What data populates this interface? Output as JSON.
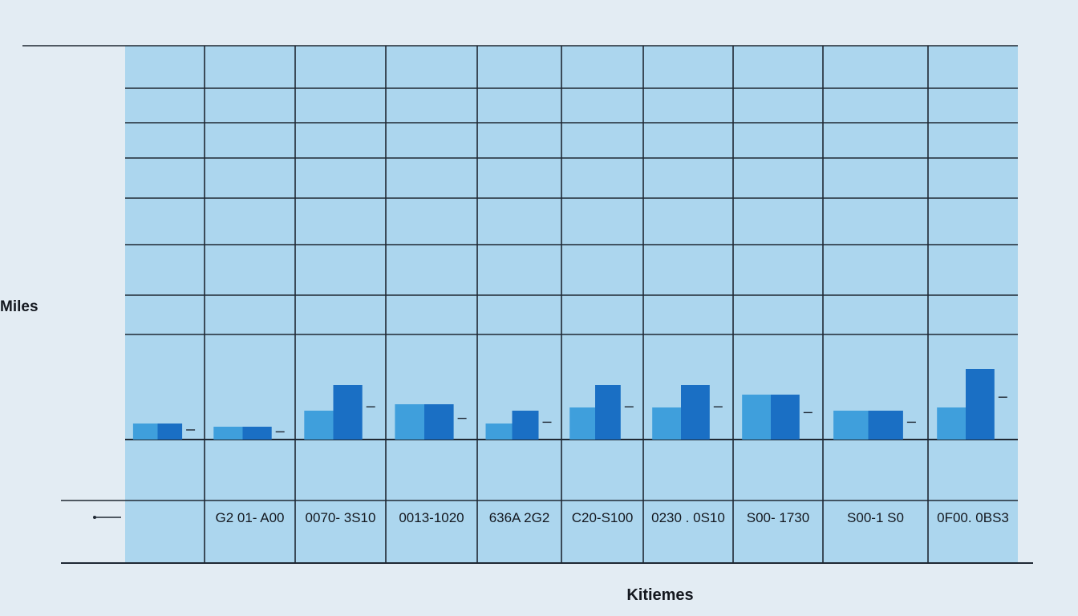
{
  "chart_data": {
    "type": "bar",
    "xlabel": "Kitiemes",
    "ylabel": "Miles",
    "categories": [
      "",
      "G2 01- A00",
      "0070- 3S10",
      "0013-1020",
      "636A  2G2",
      "C20-S100",
      "0230 . 0S10",
      "S00- 1730",
      "S00-1 S0",
      "0F00. 0BS3"
    ],
    "series": [
      {
        "values": [
          0.5,
          0.4,
          1.7,
          1.1,
          0.9,
          1.7,
          1.7,
          1.4,
          0.9,
          2.2
        ],
        "color": "#1a6fc4"
      },
      {
        "values": [
          0.5,
          0.4,
          0.9,
          1.1,
          0.5,
          1.0,
          1.0,
          1.4,
          0.9,
          1.0
        ],
        "color": "#3f9fdc"
      }
    ],
    "ylim": [
      0,
      10
    ],
    "grid": true,
    "colors": {
      "panel": "#acd6ee",
      "grid_line": "#1f2833",
      "bar_dark": "#1668bf",
      "bar_light": "#44a3dd",
      "background": "#e3ecf3"
    }
  }
}
